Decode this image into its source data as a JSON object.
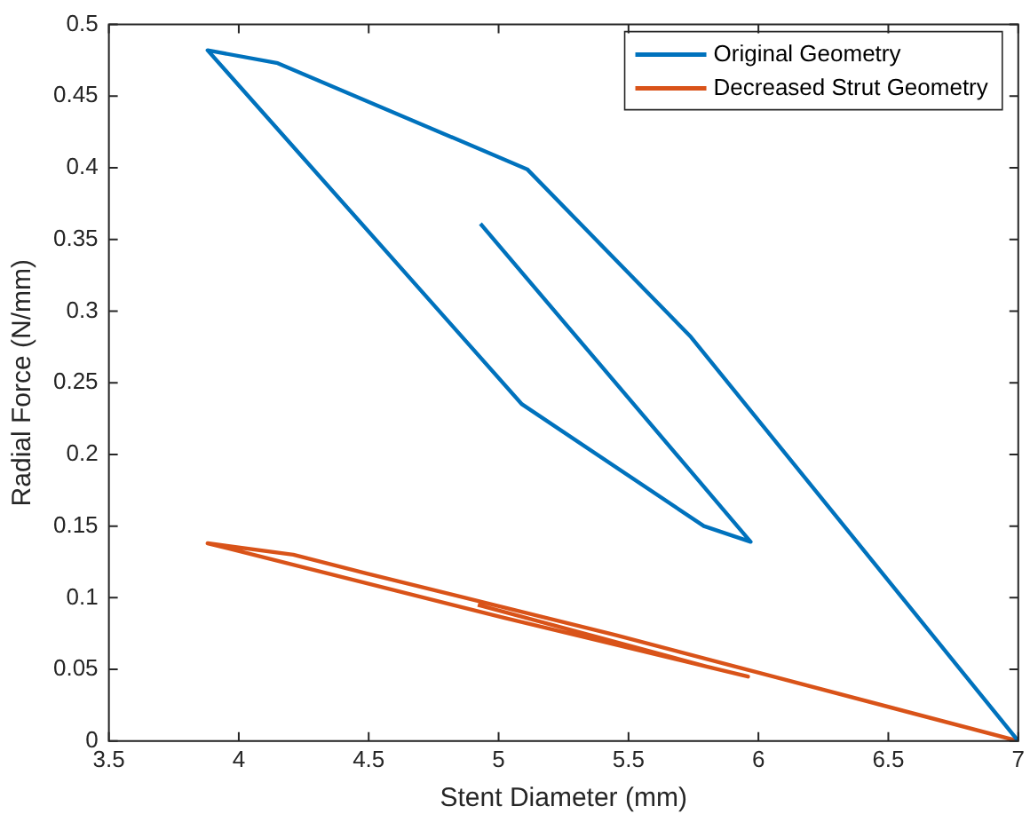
{
  "chart_data": {
    "type": "line",
    "xlabel": "Stent Diameter (mm)",
    "ylabel": "Radial Force (N/mm)",
    "xlim": [
      3.5,
      7
    ],
    "xticks": [
      3.5,
      4,
      4.5,
      5,
      5.5,
      6,
      6.5,
      7
    ],
    "ylim": [
      0,
      0.5
    ],
    "yticks": [
      0,
      0.05,
      0.1,
      0.15,
      0.2,
      0.25,
      0.3,
      0.35,
      0.4,
      0.45,
      0.5
    ],
    "grid": false,
    "legend": "top right",
    "marker": "none",
    "line_style": "solid",
    "series": [
      {
        "name": "Original Geometry",
        "color": "#0072bd",
        "x": [
          4.93,
          5.97,
          5.79,
          5.09,
          3.88,
          4.15,
          5.11,
          5.74,
          7
        ],
        "values": [
          0.361,
          0.139,
          0.15,
          0.235,
          0.482,
          0.473,
          0.399,
          0.282,
          0
        ]
      },
      {
        "name": "Decreased Strut Geometry",
        "color": "#d95319",
        "x": [
          4.92,
          5.8,
          5.96,
          5.02,
          3.88,
          4.21,
          4.49,
          5.45,
          7
        ],
        "values": [
          0.095,
          0.052,
          0.045,
          0.086,
          0.138,
          0.13,
          0.117,
          0.074,
          0
        ]
      }
    ]
  }
}
